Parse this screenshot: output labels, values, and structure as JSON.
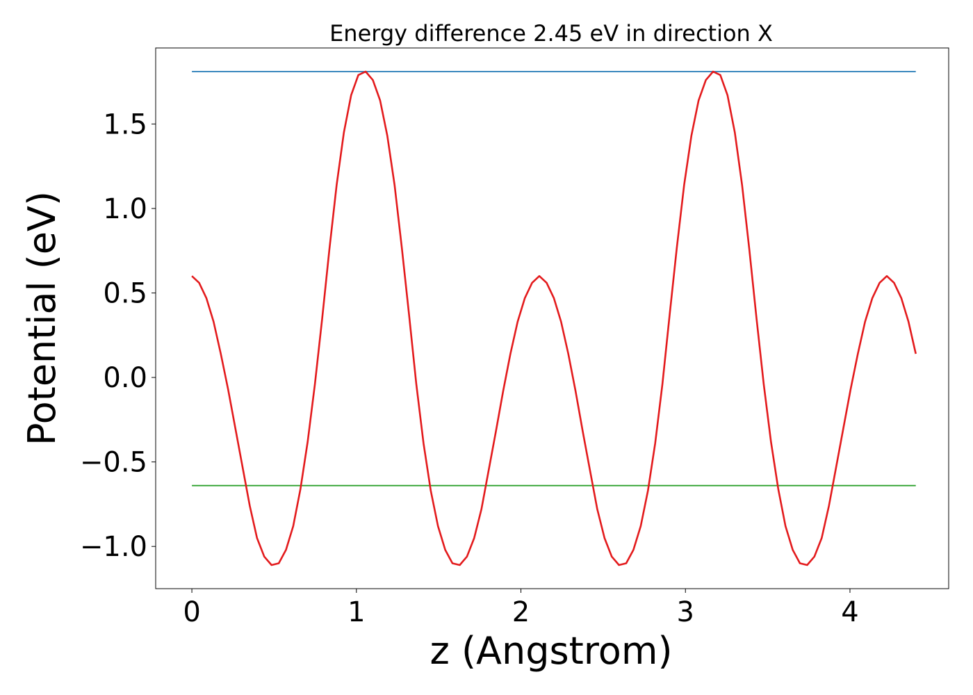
{
  "chart_data": {
    "type": "line",
    "title": "Energy difference 2.45 eV in direction X",
    "xlabel": "z (Angstrom)",
    "ylabel": "Potential (eV)",
    "xlim": [
      -0.22,
      4.6
    ],
    "ylim": [
      -1.25,
      1.95
    ],
    "grid": false,
    "xticks": [
      0,
      1,
      2,
      3,
      4
    ],
    "xtick_labels": [
      "0",
      "1",
      "2",
      "3",
      "4"
    ],
    "yticks": [
      -1.0,
      -0.5,
      0.0,
      0.5,
      1.0,
      1.5
    ],
    "ytick_labels": [
      "−1.0",
      "−0.5",
      "0.0",
      "0.5",
      "1.0",
      "1.5"
    ],
    "series": [
      {
        "color": "#1f77b4",
        "x": [
          0,
          4.4
        ],
        "y": [
          1.81,
          1.81
        ]
      },
      {
        "color": "#2ca02c",
        "x": [
          0,
          4.4
        ],
        "y": [
          -0.64,
          -0.64
        ]
      },
      {
        "color": "#e31a1c",
        "x": [
          0,
          0.044,
          0.088,
          0.132,
          0.176,
          0.22,
          0.264,
          0.308,
          0.352,
          0.396,
          0.44,
          0.484,
          0.528,
          0.572,
          0.616,
          0.66,
          0.704,
          0.748,
          0.792,
          0.836,
          0.88,
          0.924,
          0.968,
          1.012,
          1.056,
          1.1,
          1.144,
          1.188,
          1.232,
          1.276,
          1.32,
          1.364,
          1.408,
          1.452,
          1.496,
          1.54,
          1.584,
          1.628,
          1.672,
          1.716,
          1.76,
          1.804,
          1.848,
          1.892,
          1.936,
          1.98,
          2.024,
          2.068,
          2.112,
          2.156,
          2.2,
          2.244,
          2.288,
          2.332,
          2.376,
          2.42,
          2.464,
          2.508,
          2.552,
          2.596,
          2.64,
          2.684,
          2.728,
          2.772,
          2.816,
          2.86,
          2.904,
          2.948,
          2.992,
          3.036,
          3.08,
          3.124,
          3.168,
          3.212,
          3.256,
          3.3,
          3.344,
          3.388,
          3.432,
          3.476,
          3.52,
          3.564,
          3.608,
          3.652,
          3.696,
          3.74,
          3.784,
          3.828,
          3.872,
          3.916,
          3.96,
          4.004,
          4.048,
          4.092,
          4.136,
          4.18,
          4.224,
          4.268,
          4.312,
          4.356,
          4.4
        ],
        "y": [
          0.6,
          0.56,
          0.47,
          0.33,
          0.14,
          -0.07,
          -0.3,
          -0.53,
          -0.76,
          -0.95,
          -1.06,
          -1.11,
          -1.1,
          -1.02,
          -0.88,
          -0.66,
          -0.38,
          -0.04,
          0.35,
          0.76,
          1.14,
          1.45,
          1.67,
          1.79,
          1.81,
          1.76,
          1.64,
          1.43,
          1.14,
          0.77,
          0.37,
          -0.04,
          -0.39,
          -0.67,
          -0.88,
          -1.02,
          -1.1,
          -1.11,
          -1.06,
          -0.95,
          -0.78,
          -0.55,
          -0.32,
          -0.08,
          0.14,
          0.33,
          0.47,
          0.56,
          0.6,
          0.56,
          0.47,
          0.33,
          0.14,
          -0.08,
          -0.32,
          -0.55,
          -0.78,
          -0.95,
          -1.06,
          -1.11,
          -1.1,
          -1.02,
          -0.88,
          -0.67,
          -0.39,
          -0.04,
          0.37,
          0.77,
          1.14,
          1.43,
          1.64,
          1.76,
          1.81,
          1.79,
          1.67,
          1.45,
          1.14,
          0.76,
          0.35,
          -0.04,
          -0.38,
          -0.66,
          -0.88,
          -1.02,
          -1.1,
          -1.11,
          -1.06,
          -0.95,
          -0.76,
          -0.53,
          -0.3,
          -0.07,
          0.14,
          0.33,
          0.47,
          0.56,
          0.6,
          0.56,
          0.47,
          0.33,
          0.14
        ]
      }
    ]
  }
}
